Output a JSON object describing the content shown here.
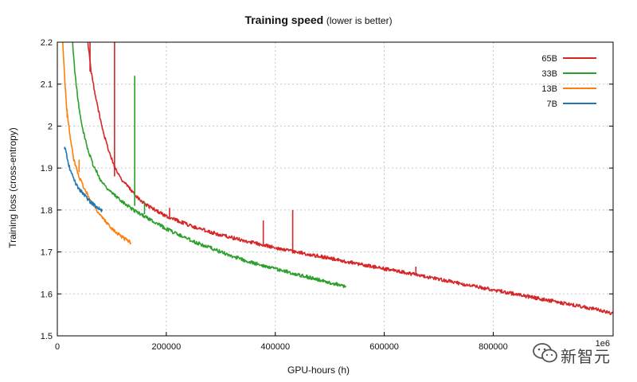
{
  "chart_data": {
    "type": "line",
    "title": "Training speed",
    "subtitle": "(lower is better)",
    "xlabel": "GPU-hours (h)",
    "ylabel": "Training loss (cross-entropy)",
    "xlim": [
      0,
      1020000
    ],
    "ylim": [
      1.5,
      2.2
    ],
    "x_ticks": [
      0,
      200000,
      400000,
      600000,
      800000
    ],
    "x_tick_labels": [
      "0",
      "200000",
      "400000",
      "600000",
      "800000"
    ],
    "x_exponent_label": "1e6",
    "y_ticks": [
      1.5,
      1.6,
      1.7,
      1.8,
      1.9,
      2.0,
      2.1,
      2.2
    ],
    "y_tick_labels": [
      "1.5",
      "1.6",
      "1.7",
      "1.8",
      "1.9",
      "2",
      "2.1",
      "2.2"
    ],
    "grid": true,
    "legend_position": "top-right",
    "series": [
      {
        "name": "65B",
        "color": "#d62728",
        "x": [
          56000,
          62000,
          70000,
          80000,
          90000,
          100000,
          110000,
          120000,
          140000,
          160000,
          180000,
          200000,
          250000,
          300000,
          350000,
          400000,
          450000,
          500000,
          550000,
          600000,
          650000,
          700000,
          750000,
          800000,
          850000,
          900000,
          950000,
          1000000,
          1020000
        ],
        "y": [
          2.2,
          2.13,
          2.07,
          2.01,
          1.96,
          1.92,
          1.89,
          1.87,
          1.84,
          1.815,
          1.8,
          1.785,
          1.76,
          1.74,
          1.725,
          1.71,
          1.697,
          1.685,
          1.672,
          1.66,
          1.648,
          1.635,
          1.622,
          1.61,
          1.597,
          1.585,
          1.573,
          1.56,
          1.553
        ]
      },
      {
        "name": "33B",
        "color": "#2ca02c",
        "x": [
          28000,
          32000,
          38000,
          45000,
          55000,
          65000,
          80000,
          100000,
          120000,
          140000,
          160000,
          200000,
          250000,
          300000,
          350000,
          400000,
          450000,
          500000,
          530000
        ],
        "y": [
          2.2,
          2.13,
          2.06,
          2.0,
          1.95,
          1.91,
          1.87,
          1.84,
          1.82,
          1.8,
          1.785,
          1.755,
          1.725,
          1.7,
          1.677,
          1.66,
          1.643,
          1.627,
          1.617
        ]
      },
      {
        "name": "13B",
        "color": "#ff7f0e",
        "x": [
          10000,
          14000,
          18000,
          24000,
          30000,
          40000,
          50000,
          60000,
          70000,
          80000,
          90000,
          100000,
          110000,
          120000,
          130000,
          135000
        ],
        "y": [
          2.2,
          2.1,
          2.03,
          1.97,
          1.92,
          1.88,
          1.85,
          1.825,
          1.805,
          1.785,
          1.77,
          1.757,
          1.745,
          1.735,
          1.727,
          1.722
        ]
      },
      {
        "name": "7B",
        "color": "#1f77b4",
        "x": [
          13000,
          16000,
          20000,
          25000,
          30000,
          35000,
          40000,
          50000,
          60000,
          70000,
          80000,
          82000
        ],
        "y": [
          1.95,
          1.94,
          1.91,
          1.89,
          1.875,
          1.86,
          1.85,
          1.835,
          1.82,
          1.81,
          1.8,
          1.797
        ]
      }
    ],
    "annotations": [
      {
        "series": "65B",
        "type": "spike",
        "x": 105000,
        "y_from": 1.88,
        "y_to": 2.2
      },
      {
        "series": "65B",
        "type": "spike",
        "x": 60000,
        "y_from": 2.13,
        "y_to": 2.2
      },
      {
        "series": "65B",
        "type": "spike",
        "x": 206000,
        "y_from": 1.78,
        "y_to": 1.805
      },
      {
        "series": "65B",
        "type": "spike",
        "x": 378000,
        "y_from": 1.715,
        "y_to": 1.775
      },
      {
        "series": "65B",
        "type": "spike",
        "x": 432000,
        "y_from": 1.7,
        "y_to": 1.8
      },
      {
        "series": "65B",
        "type": "spike",
        "x": 658000,
        "y_from": 1.645,
        "y_to": 1.665
      },
      {
        "series": "33B",
        "type": "spike",
        "x": 142000,
        "y_from": 1.81,
        "y_to": 2.12
      },
      {
        "series": "33B",
        "type": "spike",
        "x": 160000,
        "y_from": 1.79,
        "y_to": 1.82
      },
      {
        "series": "13B",
        "type": "spike",
        "x": 40000,
        "y_from": 1.89,
        "y_to": 1.92
      },
      {
        "series": "13B",
        "type": "spike",
        "x": 18000,
        "y_from": 2.02,
        "y_to": 2.04
      }
    ]
  },
  "watermark": {
    "text": "新智元",
    "icon": "wechat-icon"
  }
}
